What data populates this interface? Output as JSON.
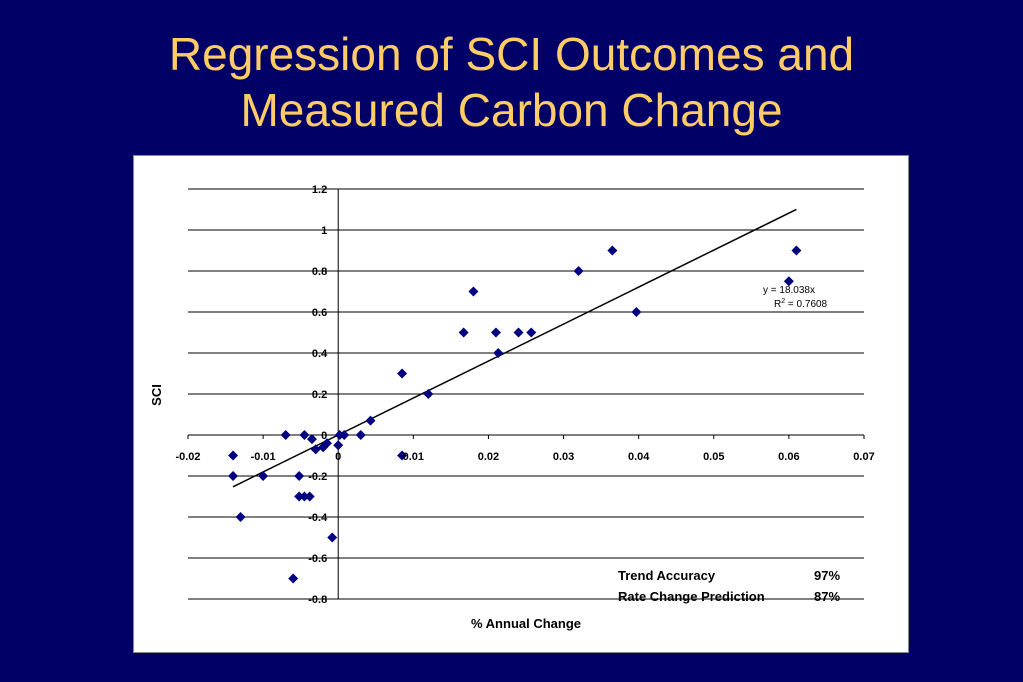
{
  "slide": {
    "title_line1": "Regression of SCI Outcomes and",
    "title_line2": "Measured Carbon Change"
  },
  "chart_data": {
    "type": "scatter",
    "title": "",
    "xlabel": "% Annual Change",
    "ylabel": "SCI",
    "xlim": [
      -0.02,
      0.07
    ],
    "ylim": [
      -0.8,
      1.2
    ],
    "x_ticks": [
      -0.02,
      -0.01,
      0,
      0.01,
      0.02,
      0.03,
      0.04,
      0.05,
      0.06,
      0.07
    ],
    "x_tick_labels": [
      "-0.02",
      "-0.01",
      "0",
      "0.01",
      "0.02",
      "0.03",
      "0.04",
      "0.05",
      "0.06",
      "0.07"
    ],
    "y_ticks": [
      -0.8,
      -0.6,
      -0.4,
      -0.2,
      0,
      0.2,
      0.4,
      0.6,
      0.8,
      1,
      1.2
    ],
    "y_tick_labels": [
      "-0.8",
      "-0.6",
      "-0.4",
      "-0.2",
      "0",
      "0.2",
      "0.4",
      "0.6",
      "0.8",
      "1",
      "1.2"
    ],
    "grid": "horizontal",
    "marker_color": "#000080",
    "trendline_color": "#000000",
    "points": [
      {
        "x": -0.014,
        "y": -0.1
      },
      {
        "x": -0.014,
        "y": -0.2
      },
      {
        "x": -0.013,
        "y": -0.4
      },
      {
        "x": -0.01,
        "y": -0.2
      },
      {
        "x": -0.007,
        "y": 0.0
      },
      {
        "x": -0.006,
        "y": -0.7
      },
      {
        "x": -0.0052,
        "y": -0.2
      },
      {
        "x": -0.0052,
        "y": -0.3
      },
      {
        "x": -0.0045,
        "y": -0.3
      },
      {
        "x": -0.0045,
        "y": 0.0
      },
      {
        "x": -0.0038,
        "y": -0.3
      },
      {
        "x": -0.0035,
        "y": -0.02
      },
      {
        "x": -0.003,
        "y": -0.07
      },
      {
        "x": -0.002,
        "y": -0.06
      },
      {
        "x": -0.0015,
        "y": -0.04
      },
      {
        "x": -0.0008,
        "y": -0.5
      },
      {
        "x": 0.0,
        "y": -0.05
      },
      {
        "x": 0.0002,
        "y": 0.0
      },
      {
        "x": 0.0008,
        "y": 0.0
      },
      {
        "x": 0.003,
        "y": 0.0
      },
      {
        "x": 0.0043,
        "y": 0.07
      },
      {
        "x": 0.0085,
        "y": -0.1
      },
      {
        "x": 0.0085,
        "y": 0.3
      },
      {
        "x": 0.012,
        "y": 0.2
      },
      {
        "x": 0.0167,
        "y": 0.5
      },
      {
        "x": 0.018,
        "y": 0.7
      },
      {
        "x": 0.021,
        "y": 0.5
      },
      {
        "x": 0.0213,
        "y": 0.4
      },
      {
        "x": 0.024,
        "y": 0.5
      },
      {
        "x": 0.0257,
        "y": 0.5
      },
      {
        "x": 0.032,
        "y": 0.8
      },
      {
        "x": 0.0365,
        "y": 0.9
      },
      {
        "x": 0.0397,
        "y": 0.6
      },
      {
        "x": 0.06,
        "y": 0.75
      },
      {
        "x": 0.061,
        "y": 0.9
      }
    ],
    "trendline": {
      "slope": 18.038,
      "intercept": 0,
      "x_range": [
        -0.014,
        0.061
      ],
      "equation_label": "y = 18.038x",
      "r2_label": "R",
      "r2_sup": "2",
      "r2_value_label": " = 0.7608"
    },
    "annotations": {
      "rows": [
        {
          "label": "Trend Accuracy",
          "value": "97%"
        },
        {
          "label": "Rate Change Prediction",
          "value": "87%"
        }
      ]
    }
  }
}
